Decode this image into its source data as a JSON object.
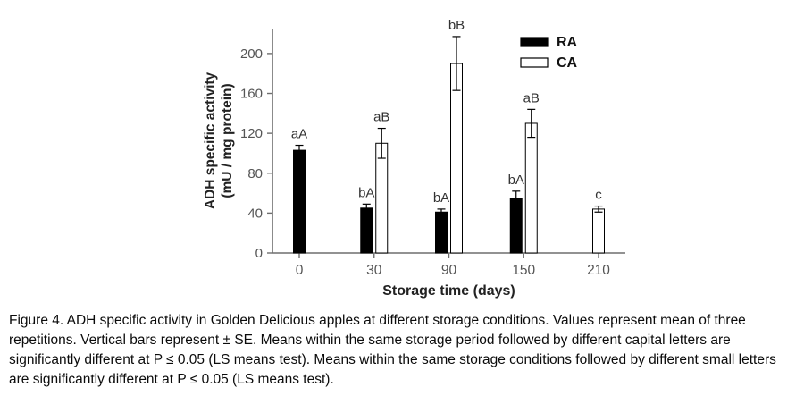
{
  "figure": {
    "caption": "Figure 4. ADH specific activity in Golden Delicious apples at different storage conditions. Values represent mean of three repetitions. Vertical bars represent ± SE. Means within the same storage period followed by different capital letters are significantly different at P ≤ 0.05 (LS means test). Means within the same storage conditions followed by different small letters are significantly different at P ≤ 0.05 (LS means test)."
  },
  "chart_data": {
    "type": "bar",
    "title": "",
    "xlabel": "Storage time (days)",
    "ylabel": "ADH specific activity",
    "ylabel_line2": "(mU / mg protein)",
    "categories": [
      "0",
      "30",
      "90",
      "150",
      "210"
    ],
    "ylim": [
      0,
      225
    ],
    "yticks": [
      0,
      40,
      80,
      120,
      160,
      200
    ],
    "grid": false,
    "legend_position": "top-right",
    "axis_color": "#6e6e6e",
    "tick_label_color": "#555555",
    "series": [
      {
        "name": "RA",
        "fill": "#000000",
        "values": [
          103,
          45,
          41,
          55,
          null
        ],
        "errors": [
          5,
          4,
          3,
          7,
          null
        ],
        "labels": [
          "aA",
          "bA",
          "bA",
          "bA",
          null
        ]
      },
      {
        "name": "CA",
        "fill": "#ffffff",
        "values": [
          null,
          110,
          190,
          130,
          44
        ],
        "errors": [
          null,
          15,
          27,
          14,
          3
        ],
        "labels": [
          null,
          "aB",
          "bB",
          "aB",
          "c"
        ]
      }
    ]
  }
}
